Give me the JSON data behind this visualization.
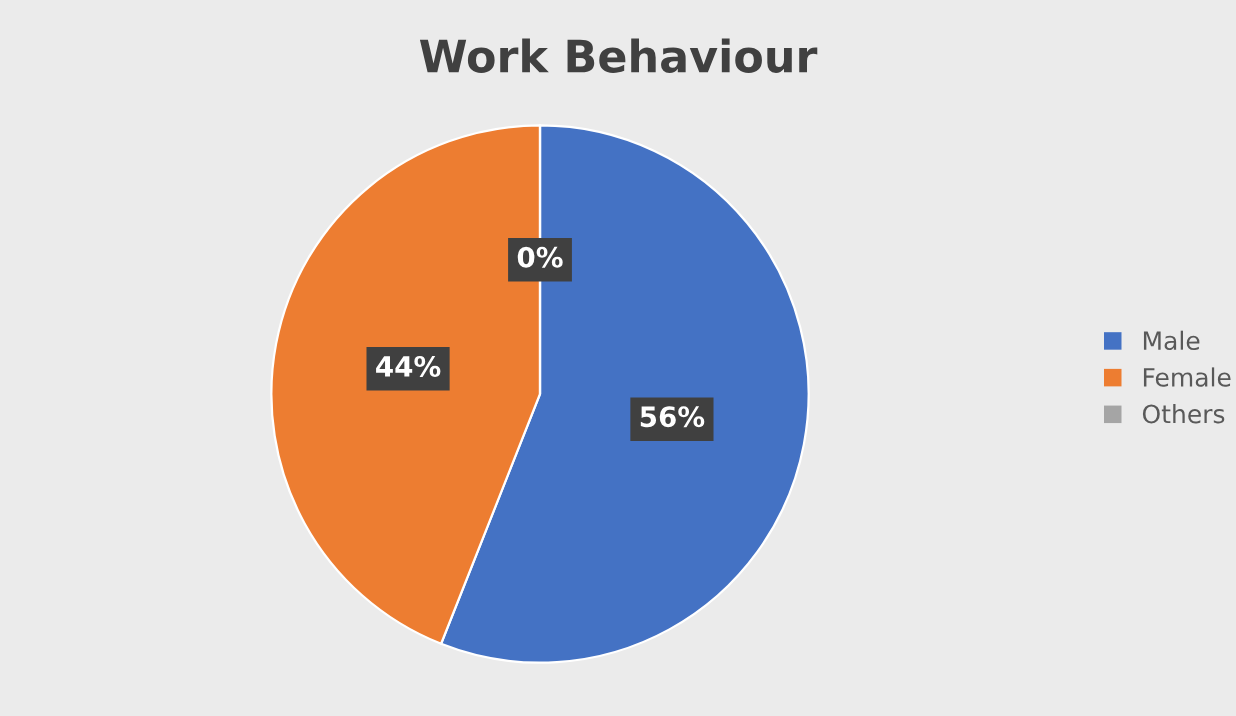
{
  "chart_data": {
    "type": "pie",
    "title": "Work Behaviour",
    "categories": [
      "Male",
      "Female",
      "Others"
    ],
    "values": [
      56,
      44,
      0
    ],
    "colors": [
      "#4472c4",
      "#ed7d31",
      "#a5a5a5"
    ],
    "value_labels": [
      "56%",
      "44%",
      "0%"
    ],
    "legend": "right"
  }
}
